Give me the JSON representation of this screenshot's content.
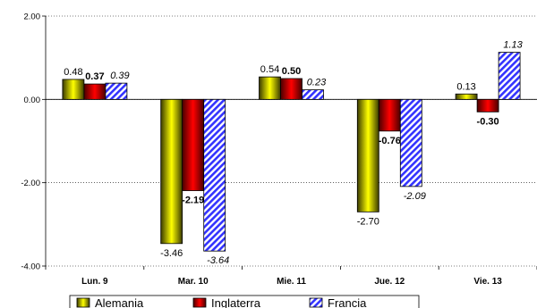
{
  "chart_data": {
    "type": "bar",
    "categories": [
      "Lun. 9",
      "Mar. 10",
      "Mie. 11",
      "Jue. 12",
      "Vie. 13"
    ],
    "series": [
      {
        "name": "Alemania",
        "values": [
          0.48,
          -3.46,
          0.54,
          -2.7,
          0.13
        ],
        "labels": [
          "0.48",
          "-3.46",
          "0.54",
          "-2.70",
          "0.13"
        ],
        "label_style": "normal",
        "color": "#b5b500",
        "pattern": "gradient"
      },
      {
        "name": "Inglaterra",
        "values": [
          0.37,
          -2.19,
          0.5,
          -0.76,
          -0.3
        ],
        "labels": [
          "0.37",
          "-2.19",
          "0.50",
          "-0.76",
          "-0.30"
        ],
        "label_style": "bold",
        "color": "#cc0000",
        "pattern": "gradient"
      },
      {
        "name": "Francia",
        "values": [
          0.39,
          -3.64,
          0.23,
          -2.09,
          1.13
        ],
        "labels": [
          "0.39",
          "-3.64",
          "0.23",
          "-2.09",
          "1.13"
        ],
        "label_style": "italic",
        "color": "#3333ff",
        "pattern": "diagonal-stripes"
      }
    ],
    "ylim": [
      -4.0,
      2.0
    ],
    "yticks": [
      "2.00",
      "0.00",
      "-2.00",
      "-4.00"
    ],
    "ytick_values": [
      2,
      0,
      -2,
      -4
    ],
    "grid": true,
    "legend_position": "bottom",
    "title": "",
    "xlabel": "",
    "ylabel": ""
  }
}
